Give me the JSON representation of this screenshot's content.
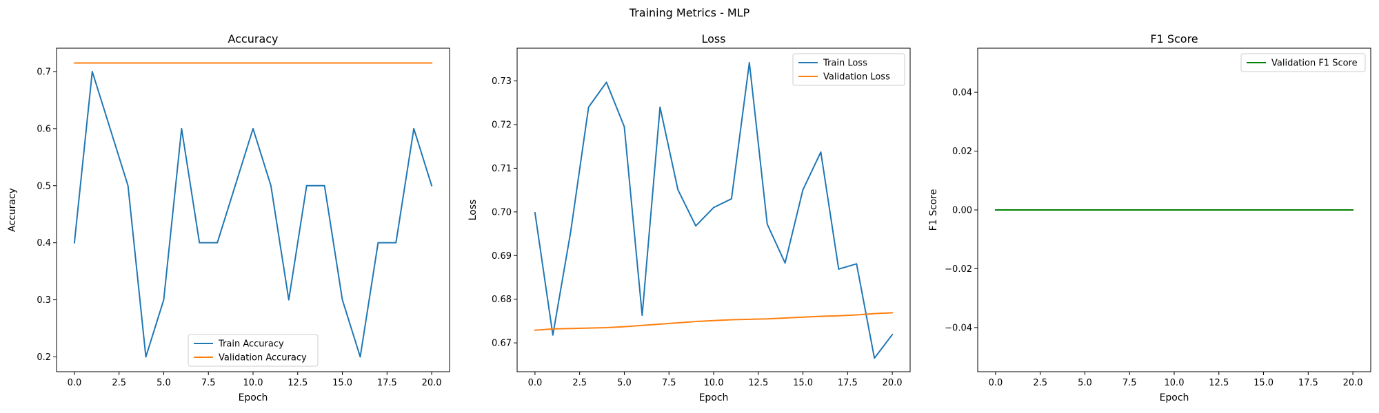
{
  "figure": {
    "title": "Training Metrics - MLP"
  },
  "colors": {
    "train": "#1f77b4",
    "validation": "#ff7f0e",
    "f1": "#008000"
  },
  "chart_data": [
    {
      "type": "line",
      "title": "Accuracy",
      "xlabel": "Epoch",
      "ylabel": "Accuracy",
      "xlim": [
        -1,
        21
      ],
      "ylim": [
        0.174,
        0.741
      ],
      "xticks": [
        0.0,
        2.5,
        5.0,
        7.5,
        10.0,
        12.5,
        15.0,
        17.5,
        20.0
      ],
      "xtick_labels": [
        "0.0",
        "2.5",
        "5.0",
        "7.5",
        "10.0",
        "12.5",
        "15.0",
        "17.5",
        "20.0"
      ],
      "yticks": [
        0.2,
        0.3,
        0.4,
        0.5,
        0.6,
        0.7
      ],
      "ytick_labels": [
        "0.2",
        "0.3",
        "0.4",
        "0.5",
        "0.6",
        "0.7"
      ],
      "legend_position": "lower-center",
      "x": [
        0,
        1,
        2,
        3,
        4,
        5,
        6,
        7,
        8,
        9,
        10,
        11,
        12,
        13,
        14,
        15,
        16,
        17,
        18,
        19,
        20
      ],
      "series": [
        {
          "name": "Train Accuracy",
          "color": "#1f77b4",
          "values": [
            0.4,
            0.7,
            0.6,
            0.5,
            0.2,
            0.3,
            0.6,
            0.4,
            0.4,
            0.5,
            0.6,
            0.5,
            0.3,
            0.5,
            0.5,
            0.3,
            0.2,
            0.4,
            0.4,
            0.6,
            0.5
          ]
        },
        {
          "name": "Validation Accuracy",
          "color": "#ff7f0e",
          "values": [
            0.715,
            0.715,
            0.715,
            0.715,
            0.715,
            0.715,
            0.715,
            0.715,
            0.715,
            0.715,
            0.715,
            0.715,
            0.715,
            0.715,
            0.715,
            0.715,
            0.715,
            0.715,
            0.715,
            0.715,
            0.715
          ]
        }
      ]
    },
    {
      "type": "line",
      "title": "Loss",
      "xlabel": "Epoch",
      "ylabel": "Loss",
      "xlim": [
        -1,
        21
      ],
      "ylim": [
        0.6634,
        0.7375
      ],
      "xticks": [
        0.0,
        2.5,
        5.0,
        7.5,
        10.0,
        12.5,
        15.0,
        17.5,
        20.0
      ],
      "xtick_labels": [
        "0.0",
        "2.5",
        "5.0",
        "7.5",
        "10.0",
        "12.5",
        "15.0",
        "17.5",
        "20.0"
      ],
      "yticks": [
        0.67,
        0.68,
        0.69,
        0.7,
        0.71,
        0.72,
        0.73
      ],
      "ytick_labels": [
        "0.67",
        "0.68",
        "0.69",
        "0.70",
        "0.71",
        "0.72",
        "0.73"
      ],
      "legend_position": "top-right",
      "x": [
        0,
        1,
        2,
        3,
        4,
        5,
        6,
        7,
        8,
        9,
        10,
        11,
        12,
        13,
        14,
        15,
        16,
        17,
        18,
        19,
        20
      ],
      "series": [
        {
          "name": "Train Loss",
          "color": "#1f77b4",
          "values": [
            0.6998,
            0.6718,
            0.6955,
            0.724,
            0.7297,
            0.7195,
            0.6763,
            0.724,
            0.7051,
            0.6968,
            0.701,
            0.703,
            0.7342,
            0.6972,
            0.6883,
            0.7051,
            0.7137,
            0.6869,
            0.6881,
            0.6665,
            0.6719
          ]
        },
        {
          "name": "Validation Loss",
          "color": "#ff7f0e",
          "values": [
            0.6729,
            0.6732,
            0.6733,
            0.6734,
            0.6735,
            0.6737,
            0.674,
            0.6743,
            0.6746,
            0.6749,
            0.6751,
            0.6753,
            0.6754,
            0.6755,
            0.6757,
            0.6759,
            0.6761,
            0.6762,
            0.6764,
            0.6767,
            0.6769
          ]
        }
      ]
    },
    {
      "type": "line",
      "title": "F1 Score",
      "xlabel": "Epoch",
      "ylabel": "F1 Score",
      "xlim": [
        -1,
        21
      ],
      "ylim": [
        -0.055,
        0.055
      ],
      "xticks": [
        0.0,
        2.5,
        5.0,
        7.5,
        10.0,
        12.5,
        15.0,
        17.5,
        20.0
      ],
      "xtick_labels": [
        "0.0",
        "2.5",
        "5.0",
        "7.5",
        "10.0",
        "12.5",
        "15.0",
        "17.5",
        "20.0"
      ],
      "yticks": [
        -0.04,
        -0.02,
        0.0,
        0.02,
        0.04
      ],
      "ytick_labels": [
        "−0.04",
        "−0.02",
        "0.00",
        "0.02",
        "0.04"
      ],
      "legend_position": "top-right",
      "x": [
        0,
        1,
        2,
        3,
        4,
        5,
        6,
        7,
        8,
        9,
        10,
        11,
        12,
        13,
        14,
        15,
        16,
        17,
        18,
        19,
        20
      ],
      "series": [
        {
          "name": "Validation F1 Score",
          "color": "#008000",
          "values": [
            0,
            0,
            0,
            0,
            0,
            0,
            0,
            0,
            0,
            0,
            0,
            0,
            0,
            0,
            0,
            0,
            0,
            0,
            0,
            0,
            0
          ]
        }
      ]
    }
  ]
}
